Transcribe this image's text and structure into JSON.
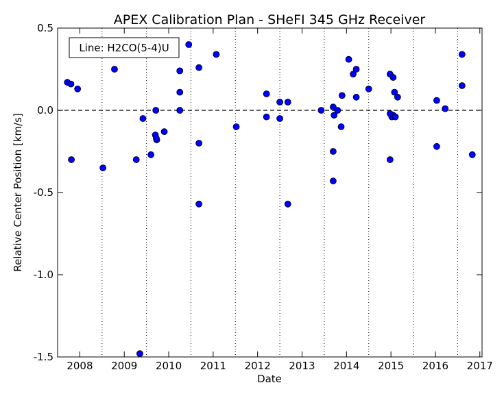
{
  "chart_data": {
    "type": "scatter",
    "title": "APEX Calibration Plan - SHeFI 345 GHz Receiver",
    "xlabel": "Date",
    "ylabel": "Relative Center Position [km/s]",
    "annotation": "Line: H2CO(5-4)U",
    "xlim": [
      2007.5,
      2017.05
    ],
    "ylim": [
      -1.5,
      0.5
    ],
    "x_ticks": [
      2008,
      2009,
      2010,
      2011,
      2012,
      2013,
      2014,
      2015,
      2016,
      2017
    ],
    "x_tick_labels": [
      "2008",
      "2009",
      "2010",
      "2011",
      "2012",
      "2013",
      "2014",
      "2015",
      "2016",
      "2017"
    ],
    "y_ticks": [
      0.5,
      0.0,
      -0.5,
      -1.0,
      -1.5
    ],
    "y_tick_labels": [
      "0.5",
      "0.0",
      "-0.5",
      "-1.0",
      "-1.5"
    ],
    "vertical_dotted_lines": [
      2008.5,
      2009.5,
      2010.5,
      2011.5,
      2012.5,
      2013.5,
      2014.5,
      2015.5,
      2016.5
    ],
    "reference_line_y": 0.0,
    "marker_color": "#0000ff",
    "x": [
      2007.72,
      2007.8,
      2007.95,
      2007.81,
      2008.52,
      2008.78,
      2009.27,
      2009.35,
      2009.42,
      2009.6,
      2009.7,
      2009.73,
      2009.72,
      2009.71,
      2009.9,
      2010.25,
      2010.25,
      2010.25,
      2010.45,
      2010.68,
      2010.68,
      2010.68,
      2011.07,
      2011.52,
      2012.2,
      2012.2,
      2012.5,
      2012.5,
      2012.68,
      2012.68,
      2013.43,
      2013.7,
      2013.72,
      2013.7,
      2013.7,
      2013.8,
      2013.9,
      2013.88,
      2014.05,
      2014.15,
      2014.22,
      2014.22,
      2014.5,
      2014.98,
      2015.05,
      2015.08,
      2015.15,
      2015.05,
      2014.98,
      2015.02,
      2015.1,
      2014.98,
      2016.03,
      2016.03,
      2016.22,
      2016.6,
      2016.6,
      2016.83
    ],
    "y": [
      0.17,
      0.16,
      0.13,
      -0.3,
      -0.35,
      0.25,
      -0.3,
      -1.48,
      -0.05,
      -0.27,
      -0.15,
      -0.18,
      -0.17,
      0.0,
      -0.13,
      0.24,
      0.11,
      0.0,
      0.4,
      0.26,
      -0.2,
      -0.57,
      0.34,
      -0.1,
      0.1,
      -0.04,
      0.05,
      -0.05,
      0.05,
      -0.57,
      0.0,
      0.02,
      -0.03,
      -0.25,
      -0.43,
      0.0,
      0.09,
      -0.1,
      0.31,
      0.22,
      0.25,
      0.08,
      0.13,
      0.22,
      0.2,
      0.11,
      0.08,
      -0.03,
      -0.02,
      -0.04,
      -0.04,
      -0.3,
      0.06,
      -0.22,
      0.01,
      0.34,
      0.15,
      -0.27
    ]
  }
}
